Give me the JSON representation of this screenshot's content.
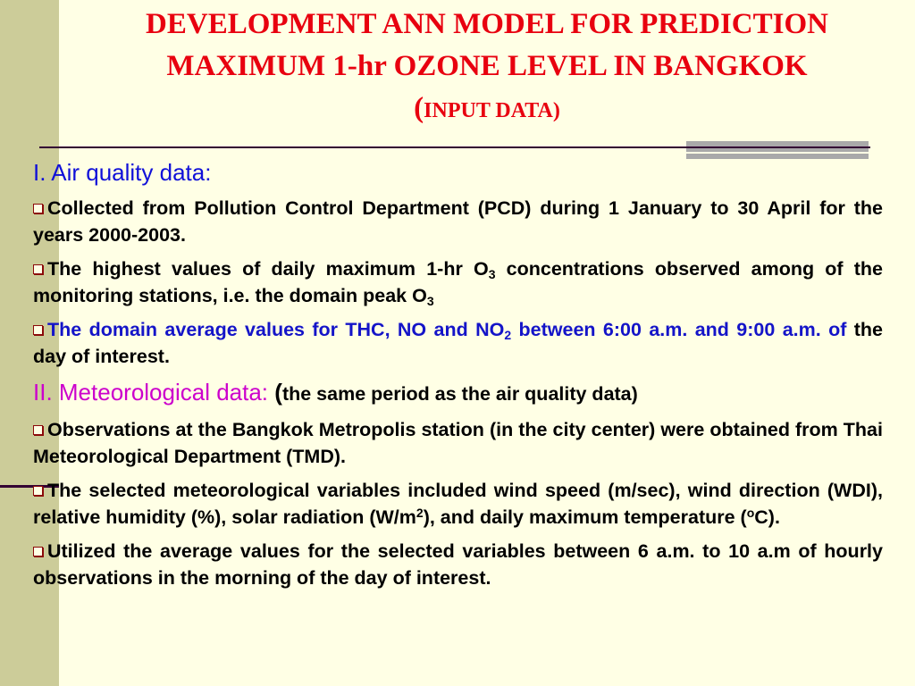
{
  "slide": {
    "title_line1": "DEVELOPMENT ANN MODEL FOR PREDICTION",
    "title_line2": "MAXIMUM 1-hr OZONE LEVEL IN BANGKOK",
    "title_line3_open": "(",
    "title_line3_rest": "INPUT DATA)"
  },
  "section1": {
    "heading": "I. Air quality data:",
    "item1": "Collected  from Pollution Control Department (PCD) during 1 January to 30 April for the years 2000-2003.",
    "item2_a": "The highest values of daily maximum 1-hr O",
    "item2_sub1": "3",
    "item2_b": " concentrations observed among of the monitoring stations, i.e. the domain peak O",
    "item2_sub2": "3",
    "item3_a": "The domain average values for THC, NO and NO",
    "item3_sub": "2",
    "item3_b": " between 6:00 a.m. and 9:00 a.m. of ",
    "item3_c": "the day of interest."
  },
  "section2": {
    "heading": "II. Meteorological data: ",
    "paren_open": "(",
    "paren_text": "the same period as the air quality data)",
    "item1": "Observations at the Bangkok Metropolis station (in the city center) were obtained from Thai Meteorological Department (TMD).",
    "item2_a": "The selected meteorological variables included wind speed (m/sec), wind direction (WDI), relative humidity (%), solar radiation (W/m",
    "item2_sup1": "2",
    "item2_b": "), and daily maximum temperature (",
    "item2_sup2": "o",
    "item2_c": "C).",
    "item3": "Utilized the average values for the selected variables between 6 a.m. to 10 a.m of hourly observations in the morning of the day of interest."
  },
  "colors": {
    "background": "#FFFFE5",
    "sidebar": "#CCCC99",
    "title": "#E8000F",
    "section1": "#1010D8",
    "section2": "#CC00CC",
    "bullet": "#8B0A0A"
  }
}
